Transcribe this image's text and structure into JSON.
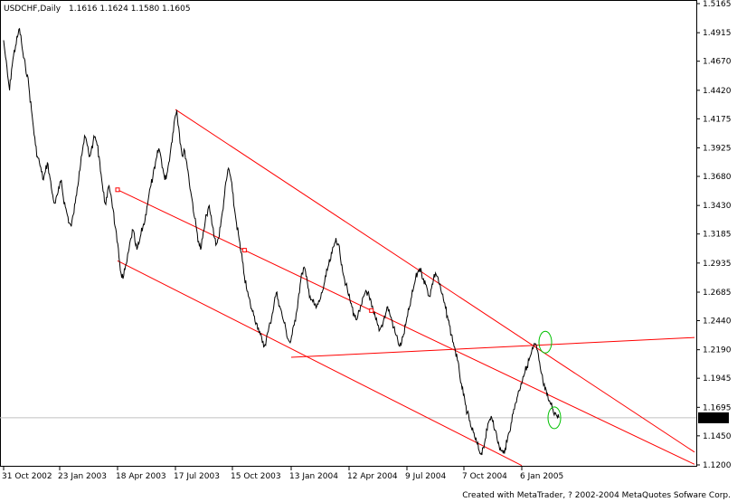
{
  "header": {
    "symbol": "USDCHF,Daily",
    "ohlc": "1.1616 1.1624 1.1580 1.1605"
  },
  "footer": "Created with MetaTrader, ? 2002-2004 MetaQuotes Sofware Corp.",
  "chart_data": {
    "type": "line",
    "symbol": "USDCHF",
    "timeframe": "Daily",
    "ylim": [
      1.12,
      1.5165
    ],
    "y_ticks": [
      "1.5165",
      "1.4915",
      "1.4670",
      "1.4420",
      "1.4175",
      "1.3925",
      "1.3680",
      "1.3430",
      "1.3185",
      "1.2935",
      "1.2685",
      "1.2440",
      "1.2190",
      "1.1945",
      "1.1695",
      "1.1450",
      "1.1200"
    ],
    "x_ticks": [
      "31 Oct 2002",
      "23 Jan 2003",
      "18 Apr 2003",
      "17 Jul 2003",
      "15 Oct 2003",
      "13 Jan 2004",
      "12 Apr 2004",
      "9 Jul 2004",
      "7 Oct 2004",
      "6 Jan 2005"
    ],
    "current_price": "1.1605",
    "grid": false,
    "colors": {
      "price": "#000000",
      "trendline": "#ff0000",
      "highlight": "#00c000",
      "current_marker": "#000000"
    },
    "series": [
      {
        "values": [
          1.485,
          1.47,
          1.455,
          1.442,
          1.46,
          1.472,
          1.48,
          1.488,
          1.495,
          1.483,
          1.47,
          1.462,
          1.455,
          1.44,
          1.425,
          1.41,
          1.395,
          1.385,
          1.38,
          1.372,
          1.365,
          1.372,
          1.38,
          1.37,
          1.358,
          1.348,
          1.345,
          1.352,
          1.358,
          1.365,
          1.35,
          1.342,
          1.335,
          1.328,
          1.325,
          1.335,
          1.345,
          1.358,
          1.372,
          1.385,
          1.395,
          1.402,
          1.395,
          1.385,
          1.39,
          1.398,
          1.402,
          1.395,
          1.385,
          1.37,
          1.355,
          1.345,
          1.35,
          1.36,
          1.352,
          1.34,
          1.325,
          1.312,
          1.298,
          1.285,
          1.28,
          1.288,
          1.295,
          1.305,
          1.315,
          1.322,
          1.312,
          1.305,
          1.31,
          1.318,
          1.325,
          1.33,
          1.342,
          1.352,
          1.36,
          1.368,
          1.375,
          1.385,
          1.392,
          1.385,
          1.375,
          1.365,
          1.37,
          1.38,
          1.392,
          1.405,
          1.418,
          1.425,
          1.41,
          1.395,
          1.385,
          1.39,
          1.38,
          1.368,
          1.355,
          1.345,
          1.332,
          1.322,
          1.312,
          1.305,
          1.315,
          1.325,
          1.335,
          1.342,
          1.335,
          1.325,
          1.315,
          1.31,
          1.315,
          1.325,
          1.338,
          1.352,
          1.365,
          1.375,
          1.368,
          1.355,
          1.34,
          1.328,
          1.318,
          1.305,
          1.295,
          1.282,
          1.272,
          1.265,
          1.258,
          1.252,
          1.248,
          1.242,
          1.238,
          1.232,
          1.225,
          1.222,
          1.228,
          1.235,
          1.242,
          1.25,
          1.26,
          1.268,
          1.262,
          1.255,
          1.248,
          1.242,
          1.235,
          1.228,
          1.225,
          1.232,
          1.24,
          1.25,
          1.262,
          1.275,
          1.285,
          1.29,
          1.282,
          1.272,
          1.265,
          1.262,
          1.258,
          1.255,
          1.258,
          1.262,
          1.268,
          1.275,
          1.282,
          1.29,
          1.295,
          1.302,
          1.308,
          1.315,
          1.31,
          1.302,
          1.292,
          1.282,
          1.275,
          1.268,
          1.262,
          1.256,
          1.25,
          1.245,
          1.248,
          1.252,
          1.258,
          1.265,
          1.27,
          1.268,
          1.262,
          1.256,
          1.25,
          1.245,
          1.24,
          1.236,
          1.24,
          1.245,
          1.25,
          1.256,
          1.25,
          1.245,
          1.238,
          1.232,
          1.228,
          1.222,
          1.225,
          1.232,
          1.24,
          1.248,
          1.256,
          1.264,
          1.272,
          1.28,
          1.285,
          1.289,
          1.285,
          1.28,
          1.275,
          1.27,
          1.265,
          1.272,
          1.28,
          1.285,
          1.282,
          1.275,
          1.268,
          1.262,
          1.255,
          1.248,
          1.24,
          1.232,
          1.225,
          1.218,
          1.21,
          1.2,
          1.19,
          1.18,
          1.172,
          1.165,
          1.158,
          1.152,
          1.148,
          1.142,
          1.138,
          1.132,
          1.13,
          1.135,
          1.142,
          1.15,
          1.158,
          1.162,
          1.158,
          1.15,
          1.142,
          1.136,
          1.132,
          1.13,
          1.134,
          1.14,
          1.148,
          1.156,
          1.164,
          1.172,
          1.178,
          1.184,
          1.19,
          1.196,
          1.2,
          1.205,
          1.21,
          1.215,
          1.22,
          1.224,
          1.219,
          1.21,
          1.2,
          1.192,
          1.185,
          1.18,
          1.175,
          1.172,
          1.168,
          1.165,
          1.162,
          1.1605
        ]
      }
    ],
    "trendlines": [
      {
        "from": [
          "17 Jul 2003",
          1.4255
        ],
        "to": [
          "end",
          1.131
        ],
        "color": "red"
      },
      {
        "from": [
          "18 Apr 2003",
          1.3565
        ],
        "to": [
          "end",
          1.1205
        ],
        "color": "red"
      },
      {
        "from": [
          "18 Apr 2003",
          1.2955
        ],
        "to": [
          "6 Jan 2005",
          1.1195
        ],
        "color": "red"
      },
      {
        "from": [
          "13 Jan 2004",
          1.2125
        ],
        "to": [
          "end",
          1.2295
        ],
        "color": "red"
      }
    ],
    "highlights": [
      {
        "near": "6 Jan 2005",
        "value": 1.2255,
        "color": "green"
      },
      {
        "near": "6 Jan 2005",
        "value": 1.1605,
        "color": "green"
      }
    ]
  }
}
